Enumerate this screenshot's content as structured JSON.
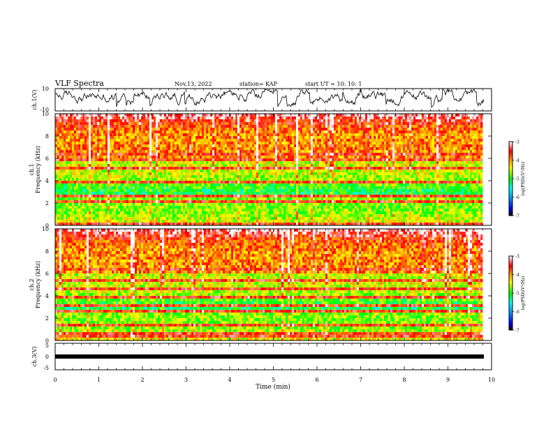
{
  "header": {
    "title": "VLF Spectra",
    "date": "Nov.13, 2022",
    "station": "station= KAP",
    "start": "start  UT =   10: 10: 1"
  },
  "panels": {
    "ch1_wave": {
      "ylabel": "ch.1(V)",
      "yticks": [
        "10",
        "-10"
      ]
    },
    "ch1_spec": {
      "ylabel_top": "ch.1",
      "ylabel": "Frequency  (kHz)",
      "yticks": [
        "10",
        "8",
        "6",
        "4",
        "2",
        "0"
      ]
    },
    "ch2_spec": {
      "ylabel_top": "ch.2",
      "ylabel": "Frequency  (kHz)",
      "yticks": [
        "10",
        "8",
        "6",
        "4",
        "2",
        "0"
      ]
    },
    "ch3_wave": {
      "ylabel": "ch.3(V)",
      "yticks": [
        "5",
        "0",
        "-5"
      ]
    }
  },
  "xaxis": {
    "label": "Time  (min)",
    "ticks": [
      "0",
      "1",
      "2",
      "3",
      "4",
      "5",
      "6",
      "7",
      "8",
      "9",
      "10"
    ]
  },
  "colorbar": {
    "label": "log(PSD)(V²/Hz)",
    "ticks": [
      "-3",
      "-4",
      "-5",
      "-6",
      "-7"
    ],
    "colors": [
      "#ffffff",
      "#ff0000",
      "#ffa000",
      "#ffff00",
      "#00ff00",
      "#00ffff",
      "#0000ff",
      "#000000"
    ]
  },
  "chart_data": [
    {
      "type": "line",
      "title": "VLF Spectra",
      "ylabel": "ch.1(V)",
      "xlabel": "Time  (min)",
      "xlim": [
        0,
        10
      ],
      "ylim": [
        -10,
        10
      ],
      "data_extent_min": 9.83,
      "series": [
        {
          "values_description_range": [
            -10,
            10
          ],
          "baseline": 3
        }
      ]
    },
    {
      "type": "heatmap",
      "ylabel": "Frequency  (kHz)",
      "xlim": [
        0,
        10
      ],
      "ylim": [
        0,
        10
      ],
      "colorbar_range": [
        -7,
        -3
      ],
      "narrowband_lines_khz": [
        0.2,
        0.5,
        1.5,
        2.2,
        2.6,
        3.0,
        3.8,
        4.5,
        5.2,
        5.8,
        6.3
      ]
    },
    {
      "type": "heatmap",
      "ylabel": "Frequency  (kHz)",
      "xlim": [
        0,
        10
      ],
      "ylim": [
        0,
        10
      ],
      "colorbar_range": [
        -7,
        -3
      ],
      "narrowband_lines_khz": [
        0.3,
        0.6,
        1.3,
        2.0,
        2.7,
        3.2,
        3.8,
        4.6,
        5.3,
        6.3
      ]
    },
    {
      "type": "line",
      "ylabel": "ch.3(V)",
      "xlim": [
        0,
        10
      ],
      "ylim": [
        -5,
        5
      ],
      "series": [
        {
          "constant_value": 0
        }
      ]
    }
  ]
}
